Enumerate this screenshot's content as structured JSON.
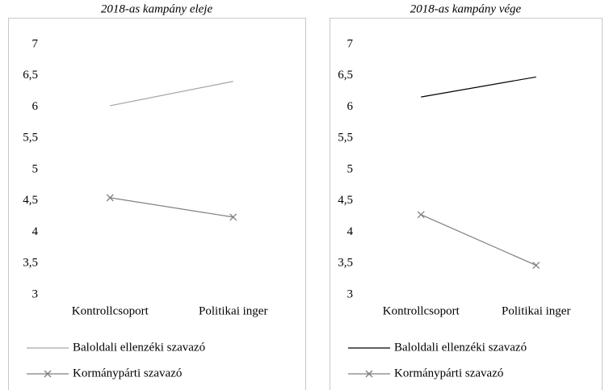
{
  "chart_data": [
    {
      "type": "line",
      "title": "2018-as kampány eleje",
      "categories": [
        "Kontrollcsoport",
        "Politikai inger"
      ],
      "series": [
        {
          "name": "Baloldali ellenzéki szavazó",
          "color": "#a6a6a6",
          "values": [
            6.02,
            6.41
          ]
        },
        {
          "name": "Kormánypárti szavazó",
          "color": "#7f7f7f",
          "marker": "x",
          "values": [
            4.55,
            4.24
          ]
        }
      ],
      "ylim": [
        3,
        7
      ],
      "yticks": [
        3,
        {
          "value": 3.5,
          "label": "3,5"
        },
        4,
        {
          "value": 4.5,
          "label": "4,5"
        },
        5,
        {
          "value": 5.5,
          "label": "5,5"
        },
        6,
        {
          "value": 6.5,
          "label": "6,5"
        },
        7
      ]
    },
    {
      "type": "line",
      "title": "2018-as kampány vége",
      "categories": [
        "Kontrollcsoport",
        "Politikai inger"
      ],
      "series": [
        {
          "name": "Baloldali ellenzéki szavazó",
          "color": "#000000",
          "values": [
            6.16,
            6.48
          ]
        },
        {
          "name": "Kormánypárti szavazó",
          "color": "#7f7f7f",
          "marker": "x",
          "values": [
            4.28,
            3.47
          ]
        }
      ],
      "ylim": [
        3,
        7
      ],
      "yticks": [
        3,
        {
          "value": 3.5,
          "label": "3,5"
        },
        4,
        {
          "value": 4.5,
          "label": "4,5"
        },
        5,
        {
          "value": 5.5,
          "label": "5,5"
        },
        6,
        {
          "value": 6.5,
          "label": "6,5"
        },
        7
      ]
    }
  ]
}
